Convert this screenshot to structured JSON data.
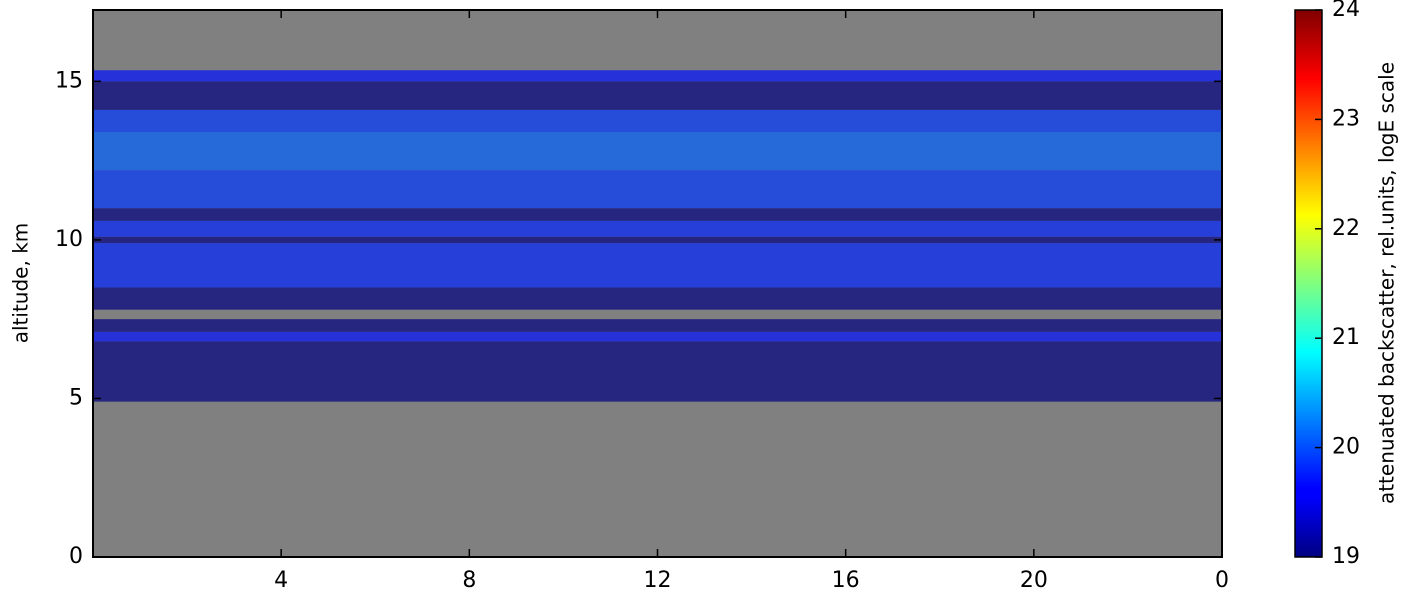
{
  "chart_data": {
    "type": "heatmap",
    "ylabel": "altitude, km",
    "xlim": [
      0,
      24
    ],
    "xticks": [
      4,
      8,
      12,
      16,
      20,
      {
        "value": 24,
        "label": "0"
      }
    ],
    "ylim": [
      0,
      17.25
    ],
    "yticks": [
      0,
      5,
      10,
      15
    ],
    "ybins": [
      0,
      4.9,
      6.8,
      7.1,
      7.5,
      7.8,
      8.5,
      9.9,
      10.1,
      10.6,
      11.0,
      12.2,
      13.4,
      14.1,
      15.0,
      15.35,
      17.25
    ],
    "values": [
      null,
      19.0,
      19.7,
      19.0,
      null,
      19.0,
      19.8,
      19.0,
      19.8,
      19.0,
      19.9,
      20.1,
      19.9,
      19.0,
      19.7,
      null
    ],
    "colormap": "jet",
    "masked_color": "#808080",
    "colorbar": {
      "label": "attenuated backscatter, rel.units, logE scale",
      "lim": [
        19,
        24
      ],
      "ticks": [
        19,
        20,
        21,
        22,
        23,
        24
      ]
    }
  }
}
